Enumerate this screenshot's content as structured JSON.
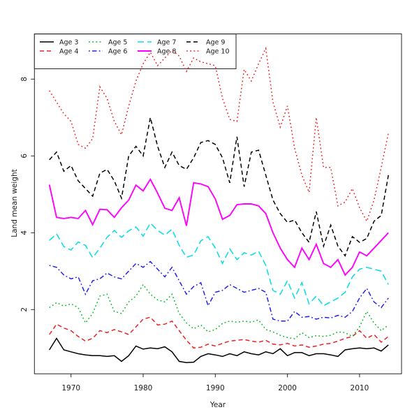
{
  "figure": {
    "background": "#ffffff",
    "box_color": "#262626",
    "text_color": "#1a1a1a"
  },
  "chart_data": {
    "type": "line",
    "title": "",
    "xlabel": "Year",
    "ylabel": "Land mean weight",
    "x_ticks": [
      1970,
      1980,
      1990,
      2000,
      2010
    ],
    "y_ticks": [
      2,
      4,
      6,
      8
    ],
    "xlim": [
      1964.9,
      2015.8
    ],
    "ylim": [
      0.33,
      9.18
    ],
    "grid": false,
    "legend_position": "top-left",
    "legend_ncol": 4,
    "x": [
      1967,
      1968,
      1969,
      1970,
      1971,
      1972,
      1973,
      1974,
      1975,
      1976,
      1977,
      1978,
      1979,
      1980,
      1981,
      1982,
      1983,
      1984,
      1985,
      1986,
      1987,
      1988,
      1989,
      1990,
      1991,
      1992,
      1993,
      1994,
      1995,
      1996,
      1997,
      1998,
      1999,
      2000,
      2001,
      2002,
      2003,
      2004,
      2005,
      2006,
      2007,
      2008,
      2009,
      2010,
      2011,
      2012,
      2013,
      2014
    ],
    "series": [
      {
        "name": "Age 3",
        "color": "#000000",
        "linetype": "solid",
        "width": 1.5,
        "values": [
          0.95,
          1.25,
          0.95,
          0.9,
          0.85,
          0.82,
          0.8,
          0.8,
          0.78,
          0.8,
          0.65,
          0.8,
          1.05,
          0.97,
          1.0,
          0.98,
          1.03,
          0.9,
          0.65,
          0.62,
          0.63,
          0.78,
          0.85,
          0.82,
          0.78,
          0.85,
          0.8,
          0.9,
          0.85,
          0.82,
          0.9,
          0.85,
          0.98,
          0.8,
          0.88,
          0.88,
          0.8,
          0.85,
          0.85,
          0.82,
          0.78,
          0.95,
          0.98,
          1.0,
          0.98,
          1.0,
          0.92,
          1.08
        ]
      },
      {
        "name": "Age 4",
        "color": "#ee2222",
        "linetype": "dashed",
        "width": 1.5,
        "values": [
          1.35,
          1.62,
          1.52,
          1.45,
          1.3,
          1.18,
          1.25,
          1.45,
          1.4,
          1.48,
          1.42,
          1.35,
          1.55,
          1.75,
          1.8,
          1.6,
          1.62,
          1.7,
          1.45,
          1.2,
          1.0,
          1.02,
          1.1,
          1.05,
          1.12,
          1.18,
          1.2,
          1.22,
          1.18,
          1.15,
          1.2,
          1.1,
          1.08,
          1.12,
          1.05,
          1.08,
          1.02,
          1.05,
          1.1,
          1.12,
          1.18,
          1.25,
          1.3,
          1.45,
          1.25,
          1.35,
          1.15,
          1.3
        ]
      },
      {
        "name": "Age 5",
        "color": "#00bb22",
        "linetype": "dotted",
        "width": 1.5,
        "values": [
          2.05,
          2.18,
          2.09,
          2.15,
          2.05,
          1.65,
          1.9,
          2.35,
          2.4,
          1.95,
          1.9,
          2.2,
          2.35,
          2.65,
          2.4,
          2.25,
          2.2,
          2.4,
          1.9,
          1.65,
          1.5,
          1.6,
          1.42,
          1.48,
          1.64,
          1.7,
          1.67,
          1.7,
          1.67,
          1.73,
          1.48,
          1.42,
          1.33,
          1.27,
          1.24,
          1.4,
          1.27,
          1.32,
          1.3,
          1.33,
          1.42,
          1.4,
          1.3,
          1.55,
          1.95,
          1.65,
          1.45,
          1.6
        ]
      },
      {
        "name": "Age 6",
        "color": "#2222ee",
        "linetype": "dotdash",
        "width": 1.5,
        "values": [
          3.15,
          3.1,
          2.9,
          2.8,
          2.85,
          2.4,
          2.75,
          2.8,
          2.95,
          2.85,
          2.8,
          3.0,
          3.2,
          3.1,
          3.25,
          3.05,
          2.85,
          3.1,
          2.75,
          2.4,
          2.6,
          2.7,
          2.1,
          2.45,
          2.5,
          2.65,
          2.55,
          2.45,
          2.5,
          2.55,
          2.45,
          1.75,
          1.7,
          1.7,
          1.95,
          1.8,
          1.82,
          1.75,
          1.8,
          1.78,
          1.85,
          1.8,
          1.95,
          2.3,
          2.55,
          2.2,
          2.05,
          2.3
        ]
      },
      {
        "name": "Age 7",
        "color": "#11dde4",
        "linetype": "longdash",
        "width": 1.6,
        "values": [
          3.8,
          3.97,
          3.64,
          3.55,
          3.76,
          3.67,
          3.35,
          3.6,
          3.88,
          4.06,
          3.88,
          4.05,
          4.15,
          3.91,
          4.25,
          4.06,
          3.94,
          4.09,
          3.67,
          3.36,
          3.42,
          3.79,
          3.9,
          3.6,
          3.2,
          3.58,
          3.3,
          3.48,
          3.42,
          3.52,
          3.15,
          2.5,
          2.4,
          2.75,
          2.3,
          2.7,
          2.15,
          2.35,
          2.1,
          2.2,
          2.3,
          2.45,
          2.85,
          3.05,
          3.1,
          3.05,
          3.0,
          2.65
        ]
      },
      {
        "name": "Age 8",
        "color": "#ff00ff",
        "linetype": "solid",
        "width": 1.9,
        "values": [
          5.25,
          4.4,
          4.37,
          4.4,
          4.37,
          4.58,
          4.21,
          4.61,
          4.6,
          4.4,
          4.65,
          4.85,
          5.24,
          5.09,
          5.39,
          5.03,
          4.64,
          4.58,
          4.91,
          4.18,
          5.3,
          5.27,
          5.2,
          4.88,
          4.35,
          4.45,
          4.73,
          4.75,
          4.75,
          4.7,
          4.5,
          4.0,
          3.6,
          3.3,
          3.1,
          3.6,
          3.3,
          3.7,
          3.2,
          3.1,
          3.3,
          2.9,
          3.1,
          3.5,
          3.4,
          3.6,
          3.8,
          4.0
        ]
      },
      {
        "name": "Age 9",
        "color": "#000000",
        "linetype": "dashed",
        "width": 1.5,
        "values": [
          5.9,
          6.1,
          5.6,
          5.75,
          5.35,
          5.15,
          4.95,
          5.55,
          5.65,
          5.35,
          4.9,
          6.0,
          6.25,
          6.0,
          7.0,
          6.25,
          5.7,
          6.1,
          5.75,
          5.65,
          5.95,
          6.35,
          6.4,
          6.3,
          5.95,
          5.3,
          6.5,
          5.2,
          6.1,
          6.15,
          5.5,
          4.85,
          4.5,
          4.27,
          4.33,
          4.0,
          3.75,
          4.55,
          3.65,
          4.2,
          3.65,
          3.4,
          3.9,
          3.75,
          3.85,
          4.3,
          4.45,
          5.5
        ]
      },
      {
        "name": "Age 10",
        "color": "#ee2222",
        "linetype": "dotted",
        "width": 1.5,
        "values": [
          7.7,
          7.4,
          7.1,
          6.9,
          6.3,
          6.2,
          6.45,
          7.8,
          7.5,
          6.9,
          6.55,
          7.3,
          7.95,
          8.4,
          8.7,
          8.35,
          8.55,
          8.75,
          8.6,
          8.2,
          8.55,
          8.45,
          8.4,
          8.35,
          7.5,
          6.95,
          6.9,
          8.25,
          7.95,
          8.4,
          8.8,
          7.4,
          6.75,
          7.3,
          6.2,
          5.5,
          5.05,
          7.0,
          5.7,
          5.7,
          4.7,
          4.8,
          5.15,
          4.65,
          4.3,
          4.85,
          5.7,
          6.6
        ]
      }
    ]
  }
}
